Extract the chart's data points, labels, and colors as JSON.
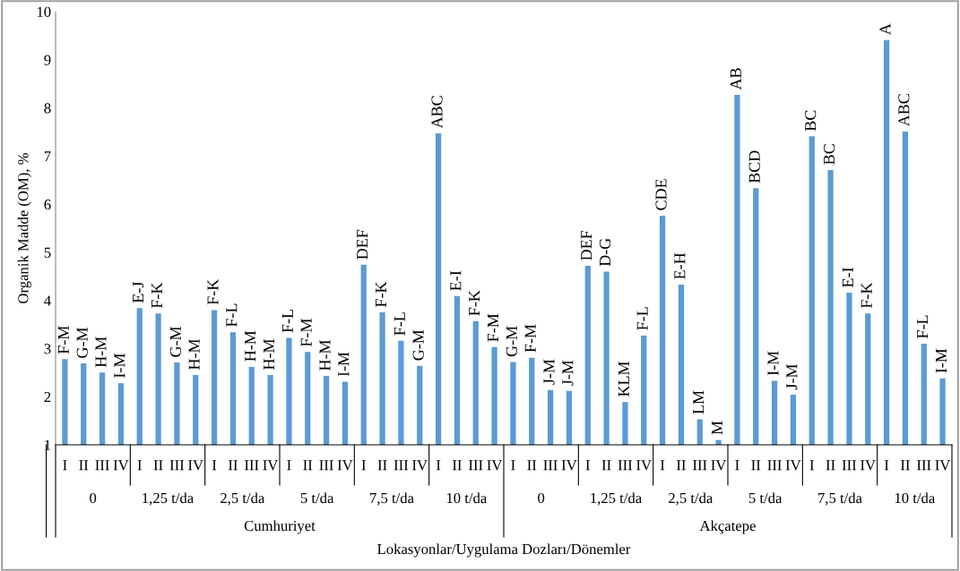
{
  "chart_data": {
    "type": "bar",
    "ylabel": "Organik Madde (OM), %",
    "xlabel": "Lokasyonlar/Uygulama Dozları/Dönemler",
    "categories": [
      "I",
      "II",
      "III",
      "IV",
      "I",
      "II",
      "III",
      "IV",
      "I",
      "II",
      "III",
      "IV",
      "I",
      "II",
      "III",
      "IV",
      "I",
      "II",
      "III",
      "IV",
      "I",
      "II",
      "III",
      "IV",
      "I",
      "II",
      "III",
      "IV",
      "I",
      "II",
      "III",
      "IV",
      "I",
      "II",
      "III",
      "IV",
      "I",
      "II",
      "III",
      "IV",
      "I",
      "II",
      "III",
      "IV",
      "I",
      "II",
      "III",
      "IV"
    ],
    "values": [
      2.78,
      2.69,
      2.5,
      2.28,
      3.84,
      3.73,
      2.71,
      2.45,
      3.8,
      3.34,
      2.62,
      2.45,
      3.22,
      2.93,
      2.43,
      2.31,
      4.74,
      3.75,
      3.16,
      2.64,
      7.47,
      4.09,
      3.57,
      3.03,
      2.72,
      2.81,
      2.14,
      2.12,
      4.72,
      4.6,
      1.89,
      3.27,
      5.76,
      4.33,
      1.53,
      1.1,
      8.27,
      6.33,
      2.33,
      2.04,
      7.41,
      6.71,
      4.16,
      3.73,
      9.41,
      7.51,
      3.1,
      2.38
    ],
    "value_labels": [
      "F-M",
      "G-M",
      "H-M",
      "I-M",
      "E-J",
      "F-K",
      "G-M",
      "H-M",
      "F-K",
      "F-L",
      "H-M",
      "H-M",
      "F-L",
      "F-M",
      "H-M",
      "I-M",
      "DEF",
      "F-K",
      "F-L",
      "G-M",
      "ABC",
      "E-I",
      "F-K",
      "F-M",
      "G-M",
      "F-M",
      "J-M",
      "J-M",
      "DEF",
      "D-G",
      "KLM",
      "F-L",
      "CDE",
      "E-H",
      "LM",
      "M",
      "AB",
      "BCD",
      "I-M",
      "J-M",
      "BC",
      "BC",
      "E-I",
      "F-K",
      "A",
      "ABC",
      "F-L",
      "I-M"
    ],
    "color": "#5b9bd5",
    "ylim": [
      1,
      10
    ],
    "yticks": [
      1,
      2,
      3,
      4,
      5,
      6,
      7,
      8,
      9,
      10
    ],
    "grid": false,
    "legend": false,
    "annotations": [
      "0",
      "1,25 t/da",
      "2,5 t/da",
      "5 t/da",
      "7,5 t/da",
      "10 t/da",
      "0",
      "1,25 t/da",
      "2,5 t/da",
      "5 t/da",
      "7,5 t/da",
      "10 t/da",
      "Cumhuriyet",
      "Akçatepe"
    ]
  }
}
